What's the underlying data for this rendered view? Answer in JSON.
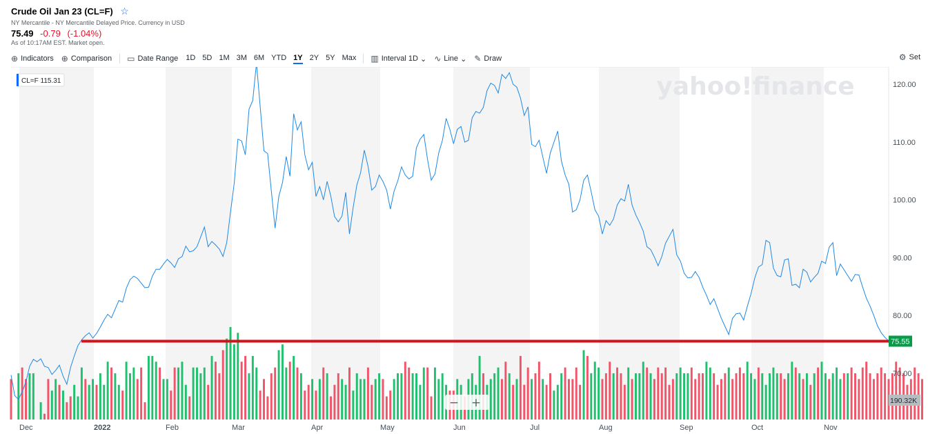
{
  "header": {
    "title": "Crude Oil Jan 23 (CL=F)",
    "subtitle": "NY Mercantile - NY Mercantile Delayed Price. Currency in USD",
    "price": "75.49",
    "change": "-0.79",
    "change_pct": "(-1.04%)",
    "as_of": "As of 10:17AM EST. Market open."
  },
  "toolbar": {
    "indicators": "Indicators",
    "comparison": "Comparison",
    "date_range": "Date Range",
    "ranges": [
      "1D",
      "5D",
      "1M",
      "3M",
      "6M",
      "YTD",
      "1Y",
      "2Y",
      "5Y",
      "Max"
    ],
    "active_range": "1Y",
    "interval_label": "Interval",
    "interval_value": "1D",
    "line": "Line",
    "draw": "Draw",
    "settings": "Set"
  },
  "colors": {
    "line": "#1e88e5",
    "up": "#21c06e",
    "down": "#f0566a",
    "hline": "#d6111a",
    "accent": "#0f69ff"
  },
  "legend_tag": "CL=F 115.31",
  "watermark": "yahoo!finance",
  "current_tag": "75.55",
  "volume_tag": "190.32K",
  "zoom": {
    "minus": "−",
    "plus": "+"
  },
  "chart_data": {
    "type": "line",
    "ylim": [
      62,
      123
    ],
    "y_ticks": [
      "120.00",
      "110.00",
      "100.00",
      "90.00",
      "80.00",
      "70.00"
    ],
    "months": [
      "Dec",
      "2022",
      "Feb",
      "Mar",
      "Apr",
      "May",
      "Jun",
      "Jul",
      "Aug",
      "Sep",
      "Oct",
      "Nov"
    ],
    "horizontal_line": 75.55,
    "series": [
      {
        "values": [
          69.7,
          66.1,
          65.5,
          66.8,
          68.5,
          71.2,
          72.4,
          72.0,
          72.5,
          71.2,
          71.0,
          69.8,
          70.5,
          71.4,
          69.5,
          68.1,
          71.0,
          73.0,
          74.8,
          75.8,
          76.5,
          77.0,
          76.1,
          76.9,
          78.0,
          79.2,
          80.2,
          79.6,
          81.1,
          82.6,
          82.3,
          84.7,
          86.2,
          86.8,
          86.4,
          85.6,
          84.8,
          84.9,
          86.8,
          88.0,
          88.0,
          88.9,
          89.7,
          89.1,
          88.3,
          89.8,
          90.2,
          92.0,
          91.0,
          91.2,
          91.9,
          93.6,
          95.3,
          91.9,
          92.8,
          92.2,
          91.5,
          90.2,
          92.6,
          97.8,
          102.8,
          110.5,
          110.2,
          107.8,
          115.7,
          117.2,
          123.7,
          116.1,
          108.5,
          108.0,
          101.5,
          95.1,
          100.6,
          103.0,
          107.5,
          104.1,
          114.9,
          112.1,
          113.5,
          107.8,
          105.2,
          106.5,
          100.6,
          102.3,
          100.0,
          103.2,
          100.6,
          97.1,
          96.2,
          97.2,
          101.3,
          94.1,
          98.7,
          102.6,
          104.7,
          108.6,
          105.8,
          101.7,
          102.3,
          104.3,
          103.2,
          101.7,
          98.4,
          101.5,
          103.3,
          105.7,
          104.3,
          103.6,
          104.1,
          109.0,
          110.5,
          111.3,
          107.0,
          103.4,
          104.5,
          108.1,
          110.3,
          114.1,
          112.2,
          109.7,
          112.2,
          112.7,
          110.0,
          110.3,
          114.2,
          115.3,
          115.0,
          116.0,
          118.9,
          120.2,
          119.8,
          118.5,
          121.7,
          121.0,
          122.0,
          120.0,
          119.5,
          117.6,
          114.6,
          116.1,
          109.6,
          109.2,
          110.3,
          107.4,
          104.6,
          108.1,
          110.0,
          111.9,
          106.7,
          104.3,
          102.7,
          97.9,
          98.3,
          100.0,
          103.4,
          104.3,
          101.4,
          98.3,
          97.2,
          94.1,
          96.4,
          95.6,
          96.7,
          99.1,
          100.2,
          99.8,
          102.7,
          99.1,
          97.4,
          96.1,
          94.6,
          91.9,
          91.4,
          90.1,
          88.6,
          90.2,
          92.5,
          93.7,
          94.9,
          90.5,
          89.4,
          87.3,
          86.5,
          86.6,
          87.6,
          86.6,
          84.9,
          83.5,
          81.9,
          82.9,
          81.2,
          79.5,
          78.1,
          76.7,
          79.5,
          80.3,
          80.4,
          79.2,
          81.6,
          83.8,
          86.5,
          88.4,
          88.8,
          93.0,
          92.6,
          88.2,
          86.9,
          86.7,
          89.6,
          89.8,
          85.2,
          85.4,
          84.8,
          88.0,
          87.5,
          85.8,
          86.6,
          87.3,
          89.4,
          89.0,
          91.8,
          92.6,
          86.9,
          88.9,
          87.9,
          86.9,
          85.9,
          87.1,
          87.0,
          84.9,
          83.0,
          81.6,
          80.0,
          78.2,
          77.0,
          76.2,
          75.6
        ]
      }
    ],
    "volume": {
      "values": [
        69,
        62,
        70,
        71,
        69,
        70,
        70,
        62,
        65,
        63,
        69,
        67,
        69,
        68,
        67,
        65,
        66,
        68,
        66,
        71,
        69,
        68,
        69,
        68,
        70,
        68,
        72,
        71,
        70,
        68,
        67,
        72,
        70,
        71,
        69,
        71,
        65,
        73,
        73,
        72,
        71,
        69,
        69,
        67,
        71,
        71,
        72,
        68,
        66,
        71,
        71,
        70,
        71,
        68,
        73,
        72,
        70,
        74,
        76,
        78,
        75,
        77,
        72,
        73,
        70,
        73,
        71,
        67,
        69,
        66,
        70,
        71,
        74,
        75,
        71,
        72,
        73,
        71,
        70,
        67,
        68,
        69,
        67,
        69,
        71,
        70,
        66,
        68,
        70,
        69,
        68,
        71,
        67,
        70,
        69,
        69,
        71,
        68,
        69,
        70,
        69,
        66,
        67,
        69,
        70,
        70,
        72,
        71,
        70,
        70,
        68,
        71,
        71,
        66,
        71,
        69,
        70,
        68,
        67,
        67,
        69,
        68,
        66,
        69,
        70,
        68,
        73,
        70,
        68,
        69,
        70,
        71,
        69,
        72,
        70,
        68,
        69,
        73,
        68,
        71,
        69,
        70,
        72,
        69,
        68,
        70,
        67,
        68,
        70,
        71,
        69,
        69,
        71,
        68,
        74,
        73,
        70,
        72,
        71,
        69,
        70,
        72,
        70,
        71,
        70,
        68,
        71,
        69,
        70,
        70,
        72,
        71,
        70,
        69,
        71,
        70,
        71,
        68,
        69,
        70,
        71,
        70,
        70,
        71,
        69,
        70,
        70,
        72,
        71,
        70,
        68,
        69,
        70,
        71,
        69,
        70,
        71,
        70,
        72,
        70,
        69,
        71,
        70,
        68,
        70,
        71,
        70,
        70,
        69,
        70,
        72,
        71,
        70,
        69,
        70,
        68,
        70,
        71,
        72,
        70,
        69,
        70,
        71,
        69,
        70,
        70,
        71,
        70,
        69,
        71,
        72,
        70,
        69,
        70,
        71,
        70,
        69,
        70,
        72,
        71,
        70,
        68,
        69,
        71,
        70,
        69
      ],
      "up": [
        false,
        true,
        true,
        false,
        false,
        true,
        true,
        false,
        true,
        false,
        false,
        true,
        true,
        false,
        true,
        false,
        false,
        true,
        true,
        true,
        false,
        true,
        true,
        false,
        true,
        true,
        true,
        false,
        true,
        true,
        false,
        true,
        true,
        true,
        false,
        false,
        false,
        true,
        true,
        true,
        false,
        true,
        true,
        false,
        false,
        true,
        true,
        true,
        false,
        true,
        true,
        true,
        true,
        false,
        true,
        false,
        false,
        false,
        true,
        true,
        true,
        true,
        false,
        false,
        true,
        true,
        true,
        false,
        false,
        false,
        false,
        false,
        true,
        true,
        true,
        false,
        true,
        false,
        true,
        false,
        false,
        true,
        false,
        true,
        false,
        true,
        false,
        false,
        false,
        true,
        true,
        false,
        true,
        true,
        true,
        true,
        false,
        false,
        true,
        true,
        false,
        false,
        false,
        true,
        true,
        true,
        false,
        false,
        true,
        true,
        true,
        true,
        false,
        false,
        true,
        true,
        true,
        true,
        false,
        false,
        true,
        true,
        false,
        true,
        true,
        true,
        true,
        false,
        true,
        true,
        true,
        true,
        false,
        false,
        true,
        false,
        true,
        false,
        false,
        false,
        true,
        false,
        false,
        true,
        false,
        false,
        true,
        true,
        true,
        false,
        false,
        false,
        false,
        false,
        true,
        false,
        true,
        true,
        true,
        false,
        false,
        false,
        true,
        false,
        false,
        false,
        true,
        false,
        true,
        true,
        true,
        false,
        true,
        false,
        false,
        false,
        false,
        false,
        false,
        true,
        true,
        true,
        true,
        false,
        false,
        false,
        false,
        true,
        true,
        false,
        false,
        false,
        false,
        true,
        false,
        false,
        false,
        false,
        true,
        true,
        true,
        false,
        true,
        true,
        true,
        true,
        true,
        false,
        false,
        true,
        true,
        false,
        true,
        false,
        true,
        false,
        true,
        false,
        true,
        true,
        false,
        true,
        true,
        true,
        false,
        true,
        false,
        false,
        false,
        false,
        false,
        false,
        false,
        false,
        false
      ]
    }
  }
}
